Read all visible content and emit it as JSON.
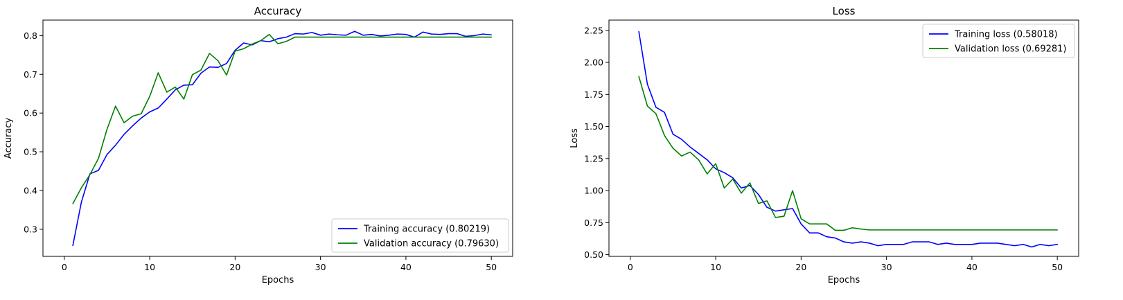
{
  "chart_data": [
    {
      "type": "line",
      "title": "Accuracy",
      "xlabel": "Epochs",
      "ylabel": "Accuracy",
      "xlim": [
        -2.5,
        52.5
      ],
      "ylim": [
        0.23,
        0.84
      ],
      "xticks": [
        0,
        10,
        20,
        30,
        40,
        50
      ],
      "yticks": [
        0.3,
        0.4,
        0.5,
        0.6,
        0.7,
        0.8
      ],
      "ytick_labels": [
        "0.3",
        "0.4",
        "0.5",
        "0.6",
        "0.7",
        "0.8"
      ],
      "grid": false,
      "legend_position": "lower-right",
      "x": [
        1,
        2,
        3,
        4,
        5,
        6,
        7,
        8,
        9,
        10,
        11,
        12,
        13,
        14,
        15,
        16,
        17,
        18,
        19,
        20,
        21,
        22,
        23,
        24,
        25,
        26,
        27,
        28,
        29,
        30,
        31,
        32,
        33,
        34,
        35,
        36,
        37,
        38,
        39,
        40,
        41,
        42,
        43,
        44,
        45,
        46,
        47,
        48,
        49,
        50
      ],
      "series": [
        {
          "name": "Training accuracy (0.80219)",
          "color": "#0000ff",
          "values": [
            0.258,
            0.37,
            0.443,
            0.452,
            0.493,
            0.517,
            0.545,
            0.567,
            0.587,
            0.603,
            0.613,
            0.636,
            0.66,
            0.672,
            0.673,
            0.703,
            0.719,
            0.718,
            0.728,
            0.762,
            0.781,
            0.776,
            0.787,
            0.784,
            0.792,
            0.796,
            0.805,
            0.804,
            0.808,
            0.801,
            0.804,
            0.802,
            0.801,
            0.811,
            0.801,
            0.803,
            0.799,
            0.801,
            0.804,
            0.803,
            0.796,
            0.809,
            0.804,
            0.803,
            0.805,
            0.805,
            0.798,
            0.8,
            0.804,
            0.802
          ]
        },
        {
          "name": "Validation accuracy (0.79630)",
          "color": "#008000",
          "values": [
            0.366,
            0.407,
            0.441,
            0.483,
            0.558,
            0.618,
            0.575,
            0.592,
            0.598,
            0.643,
            0.704,
            0.654,
            0.667,
            0.636,
            0.699,
            0.711,
            0.754,
            0.735,
            0.698,
            0.76,
            0.766,
            0.778,
            0.787,
            0.803,
            0.779,
            0.785,
            0.796,
            0.796,
            0.796,
            0.796,
            0.796,
            0.796,
            0.796,
            0.796,
            0.796,
            0.796,
            0.796,
            0.796,
            0.796,
            0.796,
            0.796,
            0.796,
            0.796,
            0.796,
            0.796,
            0.796,
            0.796,
            0.796,
            0.796,
            0.796
          ]
        }
      ]
    },
    {
      "type": "line",
      "title": "Loss",
      "xlabel": "Epochs",
      "ylabel": "Loss",
      "xlim": [
        -2.5,
        52.5
      ],
      "ylim": [
        0.487,
        2.33
      ],
      "xticks": [
        0,
        10,
        20,
        30,
        40,
        50
      ],
      "yticks": [
        0.5,
        0.75,
        1.0,
        1.25,
        1.5,
        1.75,
        2.0,
        2.25
      ],
      "ytick_labels": [
        "0.50",
        "0.75",
        "1.00",
        "1.25",
        "1.50",
        "1.75",
        "2.00",
        "2.25"
      ],
      "grid": false,
      "legend_position": "upper-right",
      "x": [
        1,
        2,
        3,
        4,
        5,
        6,
        7,
        8,
        9,
        10,
        11,
        12,
        13,
        14,
        15,
        16,
        17,
        18,
        19,
        20,
        21,
        22,
        23,
        24,
        25,
        26,
        27,
        28,
        29,
        30,
        31,
        32,
        33,
        34,
        35,
        36,
        37,
        38,
        39,
        40,
        41,
        42,
        43,
        44,
        45,
        46,
        47,
        48,
        49,
        50
      ],
      "series": [
        {
          "name": "Training loss (0.58018)",
          "color": "#0000ff",
          "values": [
            2.24,
            1.83,
            1.65,
            1.61,
            1.44,
            1.4,
            1.34,
            1.29,
            1.24,
            1.17,
            1.14,
            1.1,
            1.02,
            1.04,
            0.97,
            0.87,
            0.84,
            0.85,
            0.86,
            0.74,
            0.67,
            0.67,
            0.64,
            0.63,
            0.6,
            0.59,
            0.6,
            0.59,
            0.57,
            0.58,
            0.58,
            0.58,
            0.6,
            0.6,
            0.6,
            0.58,
            0.59,
            0.58,
            0.58,
            0.58,
            0.59,
            0.59,
            0.59,
            0.58,
            0.57,
            0.58,
            0.56,
            0.58,
            0.57,
            0.58
          ]
        },
        {
          "name": "Validation loss (0.69281)",
          "color": "#008000",
          "values": [
            1.89,
            1.66,
            1.6,
            1.43,
            1.33,
            1.27,
            1.3,
            1.24,
            1.13,
            1.21,
            1.02,
            1.09,
            0.98,
            1.06,
            0.9,
            0.92,
            0.79,
            0.8,
            1.0,
            0.78,
            0.74,
            0.74,
            0.74,
            0.69,
            0.69,
            0.71,
            0.7,
            0.693,
            0.693,
            0.693,
            0.693,
            0.693,
            0.693,
            0.693,
            0.693,
            0.693,
            0.693,
            0.693,
            0.693,
            0.693,
            0.693,
            0.693,
            0.693,
            0.693,
            0.693,
            0.693,
            0.693,
            0.693,
            0.693,
            0.693
          ]
        }
      ]
    }
  ]
}
